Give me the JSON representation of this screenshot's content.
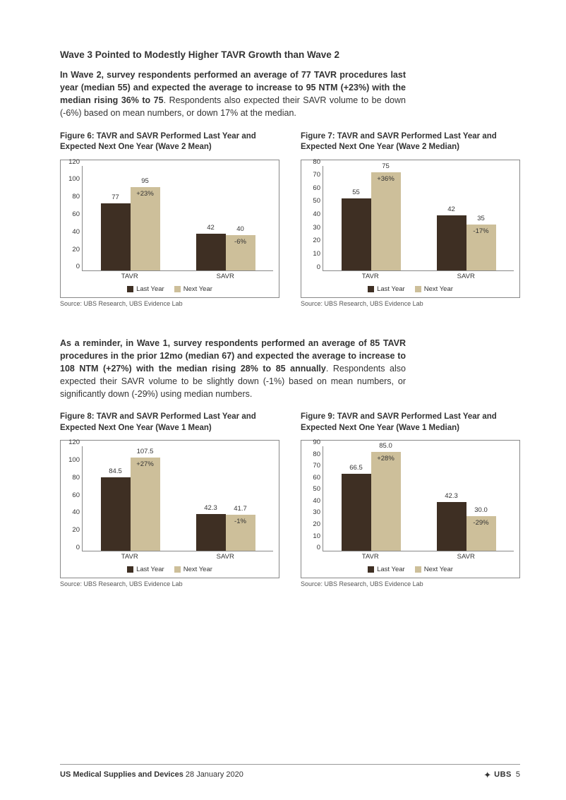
{
  "section1": {
    "title": "Wave 3 Pointed to Modestly Higher TAVR Growth than Wave 2",
    "para_bold": "In Wave 2, survey respondents performed an average of 77 TAVR procedures last year (median 55) and expected the average to increase to 95 NTM (+23%) with the median rising 36% to 75",
    "para_rest": ". Respondents also expected their SAVR volume to be down (-6%) based on mean numbers, or down 17% at the median."
  },
  "fig6": {
    "title": "Figure 6: TAVR and SAVR Performed Last Year and Expected Next One Year (Wave 2 Mean)",
    "ymax": 120,
    "ystep": 20,
    "groups": [
      "TAVR",
      "SAVR"
    ],
    "last": [
      77,
      42
    ],
    "next": [
      95,
      40
    ],
    "pct": [
      "+23%",
      "-6%"
    ],
    "pct_pos": [
      "inside",
      "inside"
    ],
    "colors": {
      "last": "#3e2f23",
      "next": "#cdbf9a"
    },
    "source": "Source:  UBS Research, UBS Evidence Lab",
    "legend": [
      "Last Year",
      "Next Year"
    ]
  },
  "fig7": {
    "title": "Figure 7: TAVR and SAVR Performed Last Year and Expected Next One Year (Wave 2 Median)",
    "ymax": 80,
    "ystep": 10,
    "groups": [
      "TAVR",
      "SAVR"
    ],
    "last": [
      55,
      42
    ],
    "next": [
      75,
      35
    ],
    "pct": [
      "+36%",
      "-17%"
    ],
    "pct_pos": [
      "inside",
      "inside"
    ],
    "colors": {
      "last": "#3e2f23",
      "next": "#cdbf9a"
    },
    "source": "Source:  UBS Research, UBS Evidence Lab",
    "legend": [
      "Last Year",
      "Next Year"
    ]
  },
  "section2": {
    "para_bold": "As a reminder, in Wave 1, survey respondents performed an average of 85 TAVR procedures in the prior 12mo (median 67) and expected the average to increase to 108 NTM (+27%) with the median rising 28% to 85 annually",
    "para_rest": ". Respondents also expected their SAVR volume to be slightly down (-1%) based on mean numbers, or significantly down (-29%) using median numbers."
  },
  "fig8": {
    "title": "Figure 8: TAVR and SAVR Performed Last Year and Expected Next One Year (Wave 1 Mean)",
    "ymax": 120,
    "ystep": 20,
    "groups": [
      "TAVR",
      "SAVR"
    ],
    "last": [
      84.5,
      42.3
    ],
    "next": [
      107.5,
      41.7
    ],
    "pct": [
      "+27%",
      "-1%"
    ],
    "pct_pos": [
      "inside",
      "inside"
    ],
    "colors": {
      "last": "#3e2f23",
      "next": "#cdbf9a"
    },
    "source": "Source:  UBS Research, UBS Evidence Lab",
    "legend": [
      "Last Year",
      "Next Year"
    ]
  },
  "fig9": {
    "title": "Figure 9: TAVR and SAVR Performed Last Year and Expected Next One Year (Wave 1 Median)",
    "ymax": 90,
    "ystep": 10,
    "groups": [
      "TAVR",
      "SAVR"
    ],
    "last": [
      66.5,
      42.3
    ],
    "next": [
      85.0,
      30.0
    ],
    "next_labels": [
      "85.0",
      "30.0"
    ],
    "pct": [
      "+28%",
      "-29%"
    ],
    "pct_pos": [
      "inside",
      "inside"
    ],
    "colors": {
      "last": "#3e2f23",
      "next": "#cdbf9a"
    },
    "source": "Source:  UBS Research, UBS Evidence Lab",
    "legend": [
      "Last Year",
      "Next Year"
    ]
  },
  "footer": {
    "left_bold": "US Medical Supplies and Devices",
    "left_date": "  28 January 2020",
    "right_brand": "UBS",
    "page": "5"
  }
}
